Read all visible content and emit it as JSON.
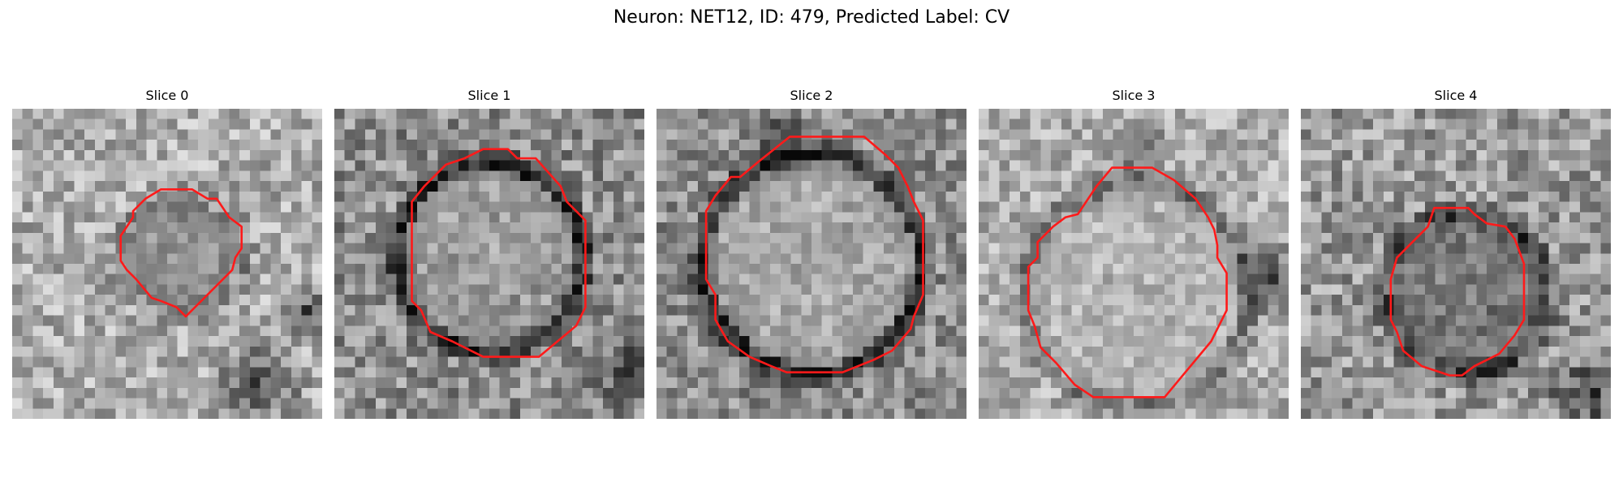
{
  "figure": {
    "title": "Neuron: NET12, ID: 479, Predicted Label: CV"
  },
  "panels": [
    {
      "title": "Slice 0"
    },
    {
      "title": "Slice 1"
    },
    {
      "title": "Slice 2"
    },
    {
      "title": "Slice 3"
    },
    {
      "title": "Slice 4"
    }
  ],
  "colors": {
    "contour": "#ff1a1a",
    "background": "#ffffff"
  }
}
